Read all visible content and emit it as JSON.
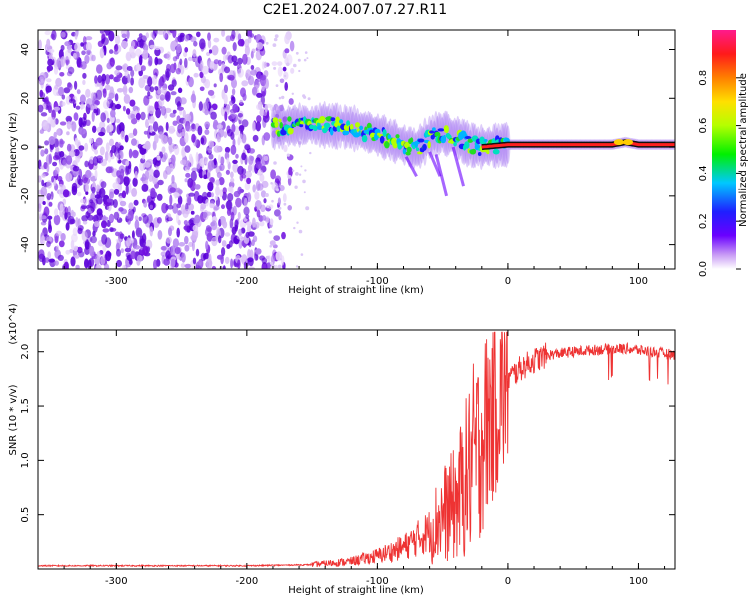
{
  "title": "C2E1.2024.007.07.27.R11",
  "chart_data": [
    {
      "type": "heatmap",
      "xlabel": "Height of straight line (km)",
      "ylabel": "Frequency (Hz)",
      "xlim": [
        -360,
        128
      ],
      "ylim": [
        -50,
        48
      ],
      "xticks": [
        -300,
        -200,
        -100,
        0,
        100
      ],
      "yticks": [
        -40,
        -20,
        0,
        20,
        40
      ],
      "grid": false,
      "colorbar": {
        "label": "Normalized spectral amplitude",
        "range": [
          0,
          1
        ],
        "ticks": [
          0.0,
          0.2,
          0.4,
          0.6,
          0.8
        ],
        "colormap": "rainbow (white-purple-blue-cyan-green-yellow-red-magenta)"
      },
      "noise_region_x": [
        -360,
        -165
      ],
      "signal_track": {
        "x": [
          -180,
          -160,
          -140,
          -120,
          -100,
          -90,
          -80,
          -70,
          -60,
          -50,
          -40,
          -30,
          -20,
          0,
          20,
          50,
          80,
          90,
          100,
          128
        ],
        "y": [
          8,
          9,
          9,
          8,
          5,
          3,
          1,
          -1,
          4,
          6,
          4,
          1,
          0,
          1,
          1,
          1,
          1,
          2,
          1,
          1
        ]
      }
    },
    {
      "type": "line",
      "xlabel": "Height of straight line (km)",
      "ylabel": "SNR (10 * v/v)",
      "yscale_label": "(x10^4)",
      "xlim": [
        -360,
        128
      ],
      "ylim": [
        0,
        2.2
      ],
      "xticks": [
        -300,
        -200,
        -100,
        0,
        100
      ],
      "yticks": [
        0.5,
        1.0,
        1.5,
        2.0
      ],
      "grid": false,
      "series": [
        {
          "color": "#ee3333",
          "x": [
            -360,
            -300,
            -200,
            -150,
            -120,
            -100,
            -80,
            -60,
            -50,
            -40,
            -30,
            -20,
            -10,
            0,
            10,
            20,
            30,
            50,
            70,
            90,
            110,
            128
          ],
          "y": [
            0.03,
            0.03,
            0.03,
            0.04,
            0.07,
            0.12,
            0.2,
            0.35,
            0.5,
            0.6,
            0.9,
            1.2,
            1.55,
            1.75,
            1.85,
            1.92,
            1.97,
            2.0,
            2.02,
            2.03,
            2.0,
            1.97
          ]
        }
      ]
    }
  ],
  "colors": {
    "signal": "#ee3333",
    "noise": "#7a14e6"
  }
}
